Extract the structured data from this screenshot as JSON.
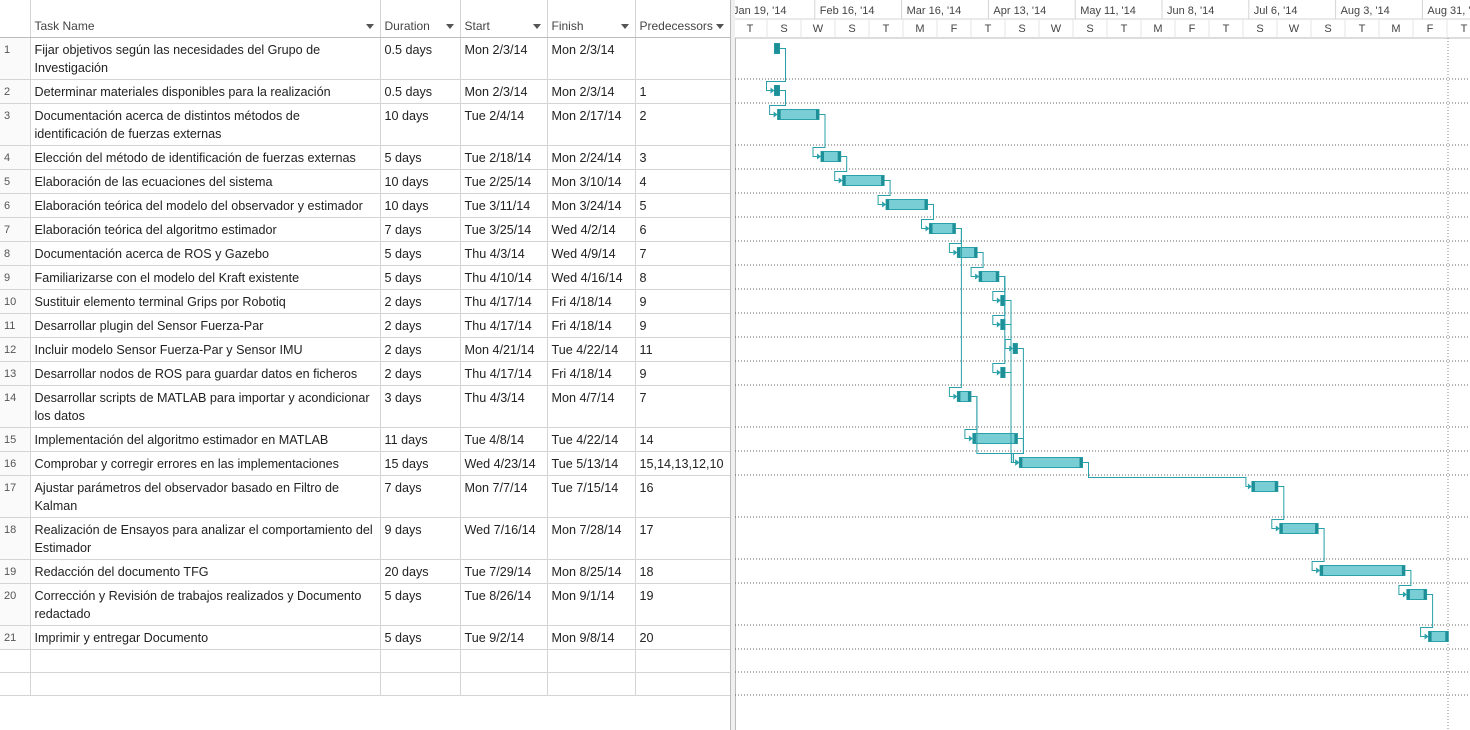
{
  "columns": [
    "Task Name",
    "Duration",
    "Start",
    "Finish",
    "Predecessors"
  ],
  "timeline": {
    "major": [
      "Jan 19, '14",
      "Feb 16, '14",
      "Mar 16, '14",
      "Apr 13, '14",
      "May 11, '14",
      "Jun 8, '14",
      "Jul 6, '14",
      "Aug 3, '14",
      "Aug 31, '14"
    ],
    "minor": [
      "T",
      "S",
      "W",
      "S",
      "T",
      "M",
      "F",
      "T",
      "S",
      "W",
      "S",
      "T",
      "M",
      "F",
      "T",
      "S",
      "W",
      "S",
      "T",
      "M",
      "F",
      "T"
    ]
  },
  "rows": [
    [
      "1",
      "Fijar objetivos según las necesidades del Grupo de Investigación",
      "0.5 days",
      "Mon 2/3/14",
      "Mon 2/3/14",
      null
    ],
    [
      "2",
      "Determinar materiales disponibles para la realización",
      "0.5 days",
      "Mon 2/3/14",
      "Mon 2/3/14",
      "1"
    ],
    [
      "3",
      "Documentación acerca de distintos métodos de identificación de fuerzas externas",
      "10 days",
      "Tue 2/4/14",
      "Mon 2/17/14",
      "2"
    ],
    [
      "4",
      "Elección del método de identificación de fuerzas externas",
      "5 days",
      "Tue 2/18/14",
      "Mon 2/24/14",
      "3"
    ],
    [
      "5",
      "Elaboración de las ecuaciones del sistema",
      "10 days",
      "Tue 2/25/14",
      "Mon 3/10/14",
      "4"
    ],
    [
      "6",
      "Elaboración teórica del modelo del observador y estimador",
      "10 days",
      "Tue 3/11/14",
      "Mon 3/24/14",
      "5"
    ],
    [
      "7",
      "Elaboración teórica del algoritmo estimador",
      "7 days",
      "Tue 3/25/14",
      "Wed 4/2/14",
      "6"
    ],
    [
      "8",
      "Documentación acerca de ROS y Gazebo",
      "5 days",
      "Thu 4/3/14",
      "Wed 4/9/14",
      "7"
    ],
    [
      "9",
      "Familiarizarse con el modelo del Kraft existente",
      "5 days",
      "Thu 4/10/14",
      "Wed 4/16/14",
      "8"
    ],
    [
      "10",
      "Sustituir elemento terminal Grips por Robotiq",
      "2 days",
      "Thu 4/17/14",
      "Fri 4/18/14",
      "9"
    ],
    [
      "11",
      "Desarrollar plugin del Sensor Fuerza-Par",
      "2 days",
      "Thu 4/17/14",
      "Fri 4/18/14",
      "9"
    ],
    [
      "12",
      "Incluir modelo Sensor Fuerza-Par y Sensor IMU",
      "2 days",
      "Mon 4/21/14",
      "Tue 4/22/14",
      "11"
    ],
    [
      "13",
      "Desarrollar nodos de ROS para guardar datos en ficheros",
      "2 days",
      "Thu 4/17/14",
      "Fri 4/18/14",
      "9"
    ],
    [
      "14",
      "Desarrollar scripts de MATLAB para importar y acondicionar los datos",
      "3 days",
      "Thu 4/3/14",
      "Mon 4/7/14",
      "7"
    ],
    [
      "15",
      "Implementación del algoritmo estimador en MATLAB",
      "11 days",
      "Tue 4/8/14",
      "Tue 4/22/14",
      "14"
    ],
    [
      "16",
      "Comprobar y corregir errores en las implementaciones",
      "15 days",
      "Wed 4/23/14",
      "Tue 5/13/14",
      "15,14,13,12,10"
    ],
    [
      "17",
      "Ajustar parámetros del observador basado en Filtro de Kalman",
      "7 days",
      "Mon 7/7/14",
      "Tue 7/15/14",
      "16"
    ],
    [
      "18",
      "Realización de Ensayos para analizar el comportamiento del Estimador",
      "9 days",
      "Wed 7/16/14",
      "Mon 7/28/14",
      "17"
    ],
    [
      "19",
      "Redacción del documento TFG",
      "20 days",
      "Tue 7/29/14",
      "Mon 8/25/14",
      "18"
    ],
    [
      "20",
      "Corrección y Revisión de trabajos realizados y Documento redactado",
      "5 days",
      "Tue 8/26/14",
      "Mon 9/1/14",
      "19"
    ],
    [
      "21",
      "Imprimir y entregar Documento",
      "5 days",
      "Tue 9/2/14",
      "Mon 9/8/14",
      "20"
    ]
  ]
}
